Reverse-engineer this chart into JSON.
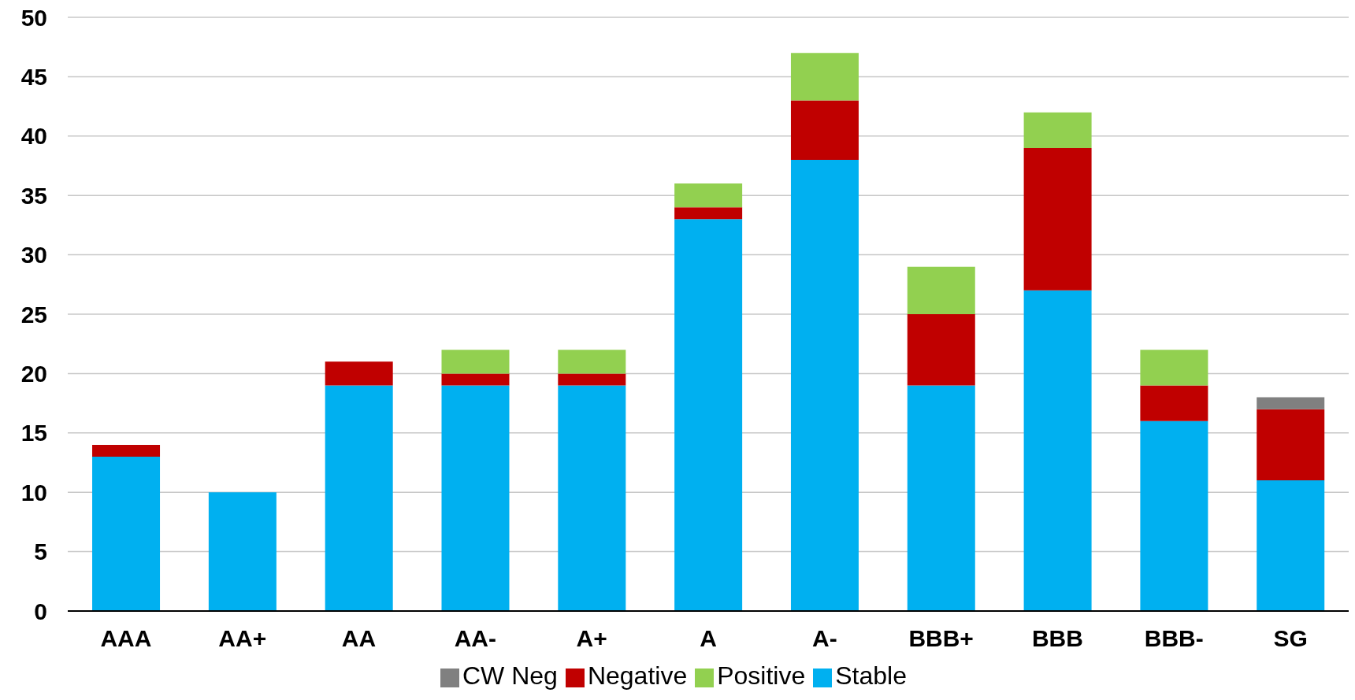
{
  "chart_data": {
    "type": "bar",
    "stacked": true,
    "categories": [
      "AAA",
      "AA+",
      "AA",
      "AA-",
      "A+",
      "A",
      "A-",
      "BBB+",
      "BBB",
      "BBB-",
      "SG"
    ],
    "series": [
      {
        "name": "Stable",
        "color": "#00b0f0",
        "values": [
          13,
          10,
          19,
          19,
          19,
          33,
          38,
          19,
          27,
          16,
          11
        ]
      },
      {
        "name": "Negative",
        "color": "#c00000",
        "values": [
          1,
          0,
          2,
          1,
          1,
          1,
          5,
          6,
          12,
          3,
          6
        ]
      },
      {
        "name": "Positive",
        "color": "#92d050",
        "values": [
          0,
          0,
          0,
          2,
          2,
          2,
          4,
          4,
          3,
          3,
          0
        ]
      },
      {
        "name": "CW Neg",
        "color": "#808080",
        "values": [
          0,
          0,
          0,
          0,
          0,
          0,
          0,
          0,
          0,
          0,
          1
        ]
      }
    ],
    "ylim": [
      0,
      50
    ],
    "yticks": [
      0,
      5,
      10,
      15,
      20,
      25,
      30,
      35,
      40,
      45,
      50
    ],
    "grid": "y",
    "legend": "bottom"
  }
}
